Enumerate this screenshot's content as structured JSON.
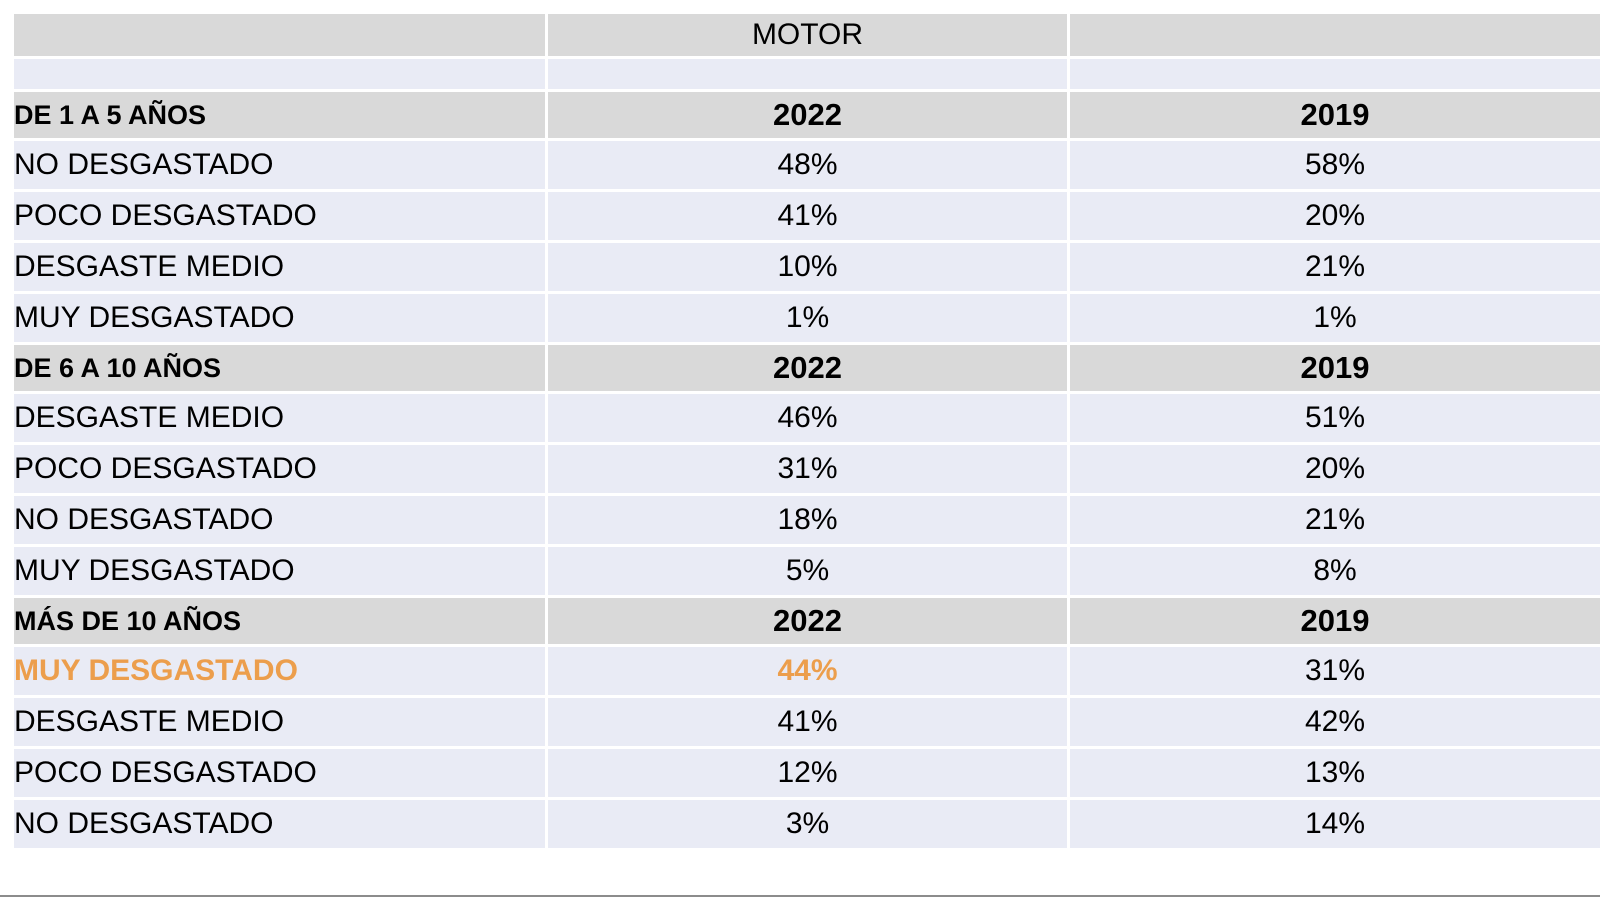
{
  "chart_data": {
    "type": "table",
    "title": "MOTOR",
    "columns": [
      "",
      "2022",
      "2019"
    ],
    "groups": [
      {
        "label": "DE 1 A 5 AÑOS",
        "col1": "2022",
        "col2": "2019",
        "rows": [
          {
            "label": "NO DESGASTADO",
            "v2022": "48%",
            "v2019": "58%",
            "highlight": false
          },
          {
            "label": "POCO DESGASTADO",
            "v2022": "41%",
            "v2019": "20%",
            "highlight": false
          },
          {
            "label": "DESGASTE MEDIO",
            "v2022": "10%",
            "v2019": "21%",
            "highlight": false
          },
          {
            "label": "MUY DESGASTADO",
            "v2022": "1%",
            "v2019": "1%",
            "highlight": false
          }
        ]
      },
      {
        "label": "DE 6 A 10 AÑOS",
        "col1": "2022",
        "col2": "2019",
        "rows": [
          {
            "label": "DESGASTE MEDIO",
            "v2022": "46%",
            "v2019": "51%",
            "highlight": false
          },
          {
            "label": "POCO DESGASTADO",
            "v2022": "31%",
            "v2019": "20%",
            "highlight": false
          },
          {
            "label": "NO DESGASTADO",
            "v2022": "18%",
            "v2019": "21%",
            "highlight": false
          },
          {
            "label": "MUY DESGASTADO",
            "v2022": "5%",
            "v2019": "8%",
            "highlight": false
          }
        ]
      },
      {
        "label": "MÁS DE 10 AÑOS",
        "col1": "2022",
        "col2": "2019",
        "rows": [
          {
            "label": "MUY DESGASTADO",
            "v2022": "44%",
            "v2019": "31%",
            "highlight": true
          },
          {
            "label": "DESGASTE MEDIO",
            "v2022": "41%",
            "v2019": "42%",
            "highlight": false
          },
          {
            "label": "POCO DESGASTADO",
            "v2022": "12%",
            "v2019": "13%",
            "highlight": false
          },
          {
            "label": "NO DESGASTADO",
            "v2022": "3%",
            "v2019": "14%",
            "highlight": false
          }
        ]
      }
    ]
  },
  "colors": {
    "header_bg": "#d9d9d9",
    "row_bg": "#e9ebf5",
    "highlight": "#ec9e4c",
    "text": "#000000"
  }
}
